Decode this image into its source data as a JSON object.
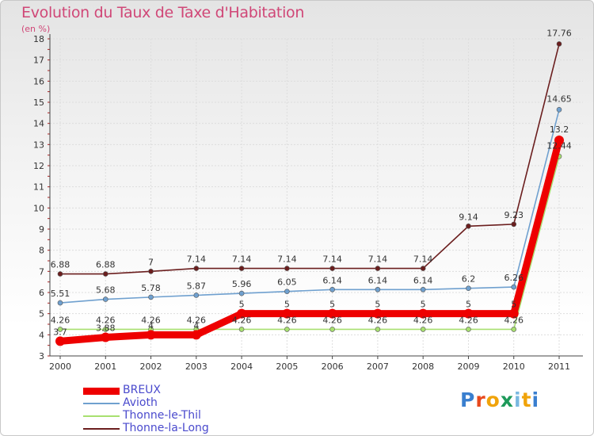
{
  "title": "Evolution du Taux de Taxe d'Habitation",
  "subtitle": "(en %)",
  "logo": {
    "text": "Proxiti",
    "letter_colors": [
      "#3a7fcf",
      "#e8491d",
      "#f0a30a",
      "#1e9a5a",
      "#7ab8e0",
      "#f0a30a",
      "#3a7fcf"
    ]
  },
  "chart_data": {
    "type": "line",
    "title": "Evolution du Taux de Taxe d'Habitation",
    "ylabel": "(en %)",
    "xlabel": "",
    "x": [
      "2000",
      "2001",
      "2002",
      "2003",
      "2004",
      "2005",
      "2006",
      "2007",
      "2008",
      "2009",
      "2010",
      "2011"
    ],
    "ylim": [
      3,
      18
    ],
    "yticks": [
      "3",
      "4",
      "5",
      "6",
      "7",
      "8",
      "9",
      "10",
      "11",
      "12",
      "13",
      "14",
      "15",
      "16",
      "17",
      "18"
    ],
    "grid": true,
    "legend_position": "bottom-left",
    "series": [
      {
        "name": "Thonne-la-Long",
        "color": "#6b1e1e",
        "values": [
          6.88,
          6.88,
          7,
          7.14,
          7.14,
          7.14,
          7.14,
          7.14,
          7.14,
          9.14,
          9.23,
          17.76
        ],
        "labels": [
          "6.88",
          "6.88",
          "7",
          "7.14",
          "7.14",
          "7.14",
          "7.14",
          "7.14",
          "7.14",
          "9.14",
          "9.23",
          "17.76"
        ]
      },
      {
        "name": "Avioth",
        "color": "#6fa0cf",
        "values": [
          5.51,
          5.68,
          5.78,
          5.87,
          5.96,
          6.05,
          6.14,
          6.14,
          6.14,
          6.2,
          6.26,
          14.65
        ],
        "labels": [
          "5.51",
          "5.68",
          "5.78",
          "5.87",
          "5.96",
          "6.05",
          "6.14",
          "6.14",
          "6.14",
          "6.2",
          "6.26",
          "14.65"
        ]
      },
      {
        "name": "Thonne-le-Thil",
        "color": "#a8e070",
        "values": [
          4.26,
          4.26,
          4.26,
          4.26,
          4.26,
          4.26,
          4.26,
          4.26,
          4.26,
          4.26,
          4.26,
          12.44
        ],
        "labels": [
          "4.26",
          "4.26",
          "4.26",
          "4.26",
          "4.26",
          "4.26",
          "4.26",
          "4.26",
          "4.26",
          "4.26",
          "4.26",
          "12.44"
        ]
      },
      {
        "name": "BREUX",
        "color": "#ee0000",
        "values": [
          3.7,
          3.88,
          4,
          4,
          5,
          5,
          5,
          5,
          5,
          5,
          5,
          13.2
        ],
        "labels": [
          "3.7",
          "3.88",
          "4",
          "4",
          "5",
          "5",
          "5",
          "5",
          "5",
          "5",
          "5",
          "13.2"
        ]
      }
    ],
    "legend": [
      {
        "name": "BREUX",
        "color": "#ee0000"
      },
      {
        "name": "Avioth",
        "color": "#6fa0cf"
      },
      {
        "name": "Thonne-le-Thil",
        "color": "#a8e070"
      },
      {
        "name": "Thonne-la-Long",
        "color": "#6b1e1e"
      }
    ]
  }
}
